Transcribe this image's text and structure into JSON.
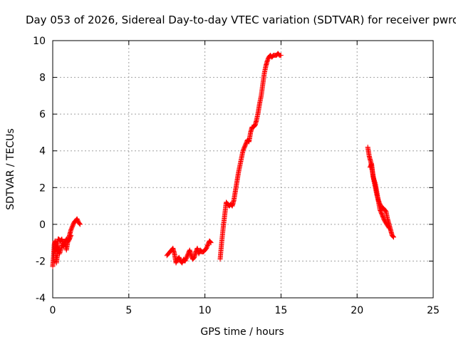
{
  "chart_data": {
    "type": "scatter",
    "title": "Day 053 of 2026, Sidereal Day-to-day VTEC variation (SDTVAR) for receiver pwro",
    "xlabel": "GPS time / hours",
    "ylabel": "SDTVAR / TECUs",
    "xlim": [
      0,
      25
    ],
    "ylim": [
      -4,
      10
    ],
    "xticks": [
      "0",
      "5",
      "10",
      "15",
      "20",
      "25"
    ],
    "yticks": [
      "-4",
      "-2",
      "0",
      "2",
      "4",
      "6",
      "8",
      "10"
    ],
    "grid": true,
    "marker": "+",
    "color": "#ff0000",
    "series": [
      {
        "name": "segment-1",
        "x": [
          0.0,
          0.05,
          0.1,
          0.15,
          0.2,
          0.25,
          0.3,
          0.35,
          0.4,
          0.5,
          0.6,
          0.7,
          0.8,
          0.9,
          1.0,
          1.1,
          1.2,
          1.3,
          1.4,
          1.5,
          1.6,
          1.7,
          1.8
        ],
        "y": [
          -2.3,
          -1.8,
          -1.1,
          -0.9,
          -1.4,
          -2.1,
          -1.7,
          -0.8,
          -0.8,
          -0.9,
          -0.8,
          -1.2,
          -1.0,
          -1.4,
          -0.9,
          -0.6,
          -0.3,
          -0.1,
          0.1,
          0.2,
          0.3,
          0.1,
          0.0
        ]
      },
      {
        "name": "segment-1b",
        "x": [
          0.1,
          0.2,
          0.3,
          0.45,
          0.6,
          0.75,
          0.9,
          1.05,
          1.2
        ],
        "y": [
          -1.5,
          -1.3,
          -1.2,
          -1.6,
          -1.2,
          -1.0,
          -0.8,
          -0.9,
          -0.6
        ]
      },
      {
        "name": "segment-2",
        "x": [
          7.5,
          7.7,
          7.9,
          8.0,
          8.1,
          8.2,
          8.3,
          8.4,
          8.5,
          8.6,
          8.7,
          8.8,
          8.9,
          9.0,
          9.1,
          9.2,
          9.3,
          9.4,
          9.5,
          9.6,
          9.7,
          9.8,
          9.9,
          10.0,
          10.1,
          10.2,
          10.3,
          10.4
        ],
        "y": [
          -1.7,
          -1.5,
          -1.3,
          -1.6,
          -2.1,
          -1.9,
          -1.8,
          -2.0,
          -2.1,
          -1.9,
          -2.0,
          -1.8,
          -1.6,
          -1.4,
          -1.7,
          -1.9,
          -1.8,
          -1.5,
          -1.3,
          -1.6,
          -1.4,
          -1.5,
          -1.5,
          -1.4,
          -1.3,
          -1.1,
          -0.9,
          -1.0
        ]
      },
      {
        "name": "segment-3",
        "x": [
          11.0,
          11.1,
          11.2,
          11.3,
          11.4,
          11.5,
          11.6,
          11.7,
          11.8,
          11.9,
          12.0,
          12.1,
          12.2,
          12.3,
          12.4,
          12.5,
          12.6,
          12.7,
          12.8,
          12.9,
          13.0,
          13.1,
          13.2,
          13.3,
          13.4,
          13.5,
          13.6,
          13.7,
          13.8,
          13.9,
          14.0,
          14.1,
          14.2,
          14.3,
          14.4,
          14.5,
          14.6,
          14.7,
          14.8,
          14.9,
          15.0
        ],
        "y": [
          -1.9,
          -1.0,
          -0.2,
          0.5,
          1.2,
          1.1,
          1.0,
          1.1,
          1.0,
          1.3,
          1.8,
          2.3,
          2.8,
          3.2,
          3.6,
          4.0,
          4.2,
          4.4,
          4.6,
          4.5,
          5.0,
          5.3,
          5.3,
          5.4,
          5.7,
          6.1,
          6.6,
          7.0,
          7.6,
          8.2,
          8.6,
          8.9,
          9.1,
          9.2,
          9.1,
          9.2,
          9.2,
          9.2,
          9.3,
          9.2,
          9.2
        ]
      },
      {
        "name": "segment-4",
        "x": [
          20.7,
          20.8,
          20.9,
          21.0,
          21.1,
          21.2,
          21.3,
          21.4,
          21.5,
          21.6,
          21.7,
          21.8,
          21.9,
          22.0,
          22.1,
          22.2,
          22.3,
          22.4
        ],
        "y": [
          4.2,
          3.7,
          3.4,
          2.9,
          2.4,
          2.0,
          1.6,
          1.3,
          1.1,
          0.9,
          0.9,
          0.8,
          0.7,
          0.3,
          0.0,
          -0.3,
          -0.6,
          -0.7
        ]
      },
      {
        "name": "segment-4b",
        "x": [
          20.85,
          20.95,
          21.05,
          21.2,
          21.35,
          21.5,
          21.65,
          21.8,
          21.95,
          22.1
        ],
        "y": [
          3.1,
          3.3,
          2.6,
          2.2,
          1.5,
          0.8,
          0.5,
          0.2,
          0.0,
          -0.2
        ]
      }
    ]
  }
}
